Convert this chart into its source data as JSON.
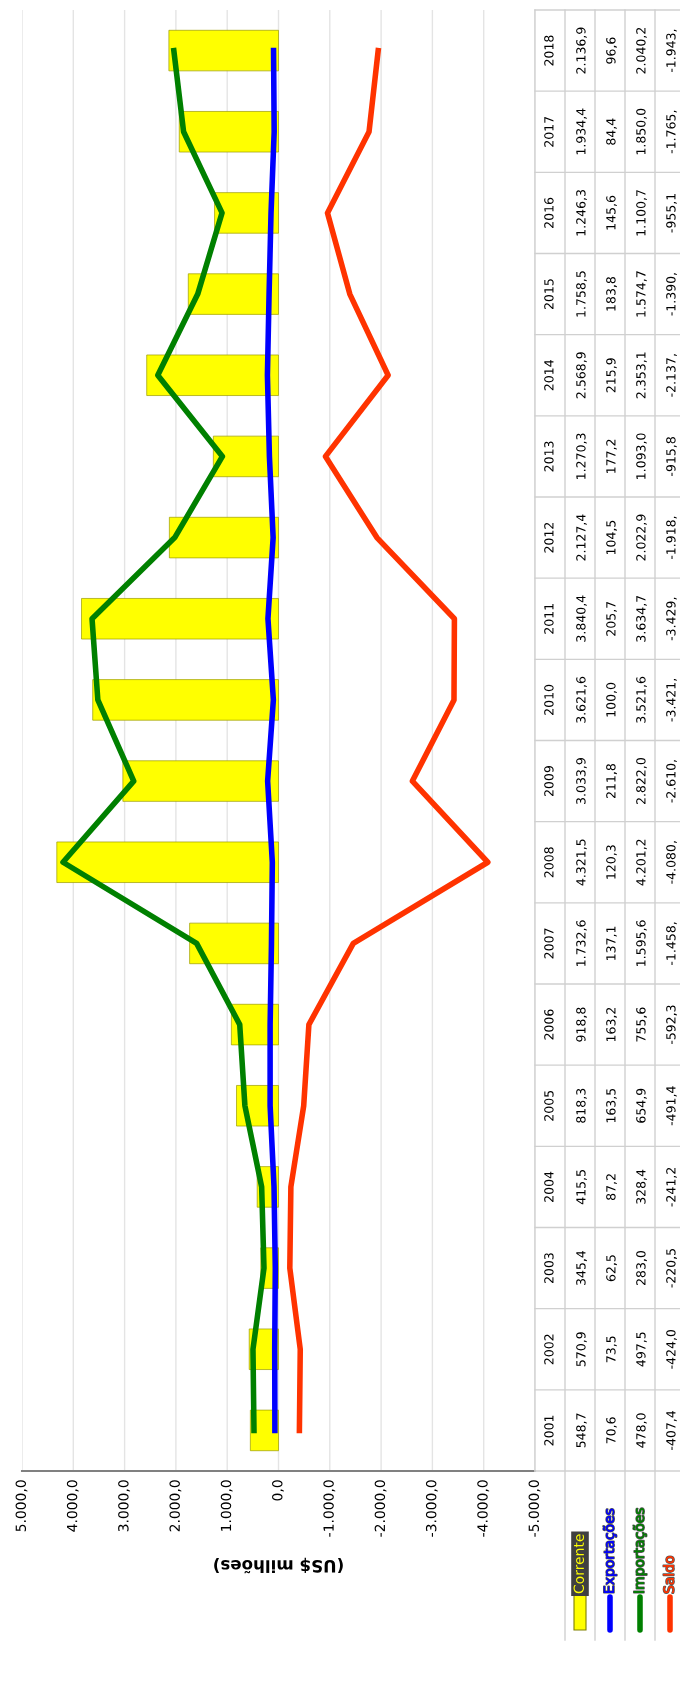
{
  "chart_data": {
    "type": "line",
    "orientation": "horizontal",
    "xlabel": "(US$ milhões)",
    "categories": [
      "2018",
      "2017",
      "2016",
      "2015",
      "2014",
      "2013",
      "2012",
      "2011",
      "2010",
      "2009",
      "2008",
      "2007",
      "2006",
      "2005",
      "2004",
      "2003",
      "2002",
      "2001"
    ],
    "series": [
      {
        "name": "Corrente",
        "type": "bar",
        "color": "#ffff00",
        "values": [
          2136.9,
          1934.4,
          1246.3,
          1758.5,
          2568.9,
          1270.3,
          2127.4,
          3840.4,
          3621.6,
          3033.9,
          4321.5,
          1732.6,
          918.8,
          818.3,
          415.5,
          345.4,
          570.9,
          548.7
        ],
        "value_labels": [
          "2.136,9",
          "1.934,4",
          "1.246,3",
          "1.758,5",
          "2.568,9",
          "1.270,3",
          "2.127,4",
          "3.840,4",
          "3.621,6",
          "3.033,9",
          "4.321,5",
          "1.732,6",
          "918,8",
          "818,3",
          "415,5",
          "345,4",
          "570,9",
          "548,7"
        ]
      },
      {
        "name": "Exportações",
        "color": "#0000ff",
        "values": [
          96.6,
          84.4,
          145.6,
          183.8,
          215.9,
          177.2,
          104.5,
          205.7,
          100.0,
          211.8,
          120.3,
          137.1,
          163.2,
          163.5,
          87.2,
          62.5,
          73.5,
          70.6
        ],
        "value_labels": [
          "96,6",
          "84,4",
          "145,6",
          "183,8",
          "215,9",
          "177,2",
          "104,5",
          "205,7",
          "100,0",
          "211,8",
          "120,3",
          "137,1",
          "163,2",
          "163,5",
          "87,2",
          "62,5",
          "73,5",
          "70,6"
        ]
      },
      {
        "name": "Importações",
        "color": "#008000",
        "values": [
          2040.2,
          1850.0,
          1100.7,
          1574.7,
          2353.1,
          1093.0,
          2022.9,
          3634.7,
          3521.6,
          2822.0,
          4201.2,
          1595.6,
          755.6,
          654.9,
          328.4,
          283.0,
          497.5,
          478.0
        ],
        "value_labels": [
          "2.040,2",
          "1.850,0",
          "1.100,7",
          "1.574,7",
          "2.353,1",
          "1.093,0",
          "2.022,9",
          "3.634,7",
          "3.521,6",
          "2.822,0",
          "4.201,2",
          "1.595,6",
          "755,6",
          "654,9",
          "328,4",
          "283,0",
          "497,5",
          "478,0"
        ]
      },
      {
        "name": "Saldo",
        "color": "#ff3300",
        "values": [
          -1943,
          -1765,
          -955.1,
          -1390,
          -2137,
          -915.8,
          -1918,
          -3429,
          -3421,
          -2610,
          -4080,
          -1458,
          -592.3,
          -491.4,
          -241.2,
          -220.5,
          -424.0,
          -407.4
        ],
        "value_labels": [
          "-1.943,",
          "-1.765,",
          "-955,1",
          "-1.390,",
          "-2.137,",
          "-915,8",
          "-1.918,",
          "-3.429,",
          "-3.421,",
          "-2.610,",
          "-4.080,",
          "-1.458,",
          "-592,3",
          "-491,4",
          "-241,2",
          "-220,5",
          "-424,0",
          "-407,4"
        ]
      }
    ],
    "xlim": [
      5000,
      -5000
    ],
    "xticks": [
      {
        "value": 5000,
        "label": "5.000,0"
      },
      {
        "value": 4000,
        "label": "4.000,0"
      },
      {
        "value": 3000,
        "label": "3.000,0"
      },
      {
        "value": 2000,
        "label": "2.000,0"
      },
      {
        "value": 1000,
        "label": "1.000,0"
      },
      {
        "value": 0,
        "label": "0,0"
      },
      {
        "value": -1000,
        "label": "-1.000,0"
      },
      {
        "value": -2000,
        "label": "-2.000,0"
      },
      {
        "value": -3000,
        "label": "-3.000,0"
      },
      {
        "value": -4000,
        "label": "-4.000,0"
      },
      {
        "value": -5000,
        "label": "-5.000,0"
      }
    ],
    "grid": "x",
    "legend": "bottom",
    "marker": "none",
    "line_style": "solid"
  }
}
